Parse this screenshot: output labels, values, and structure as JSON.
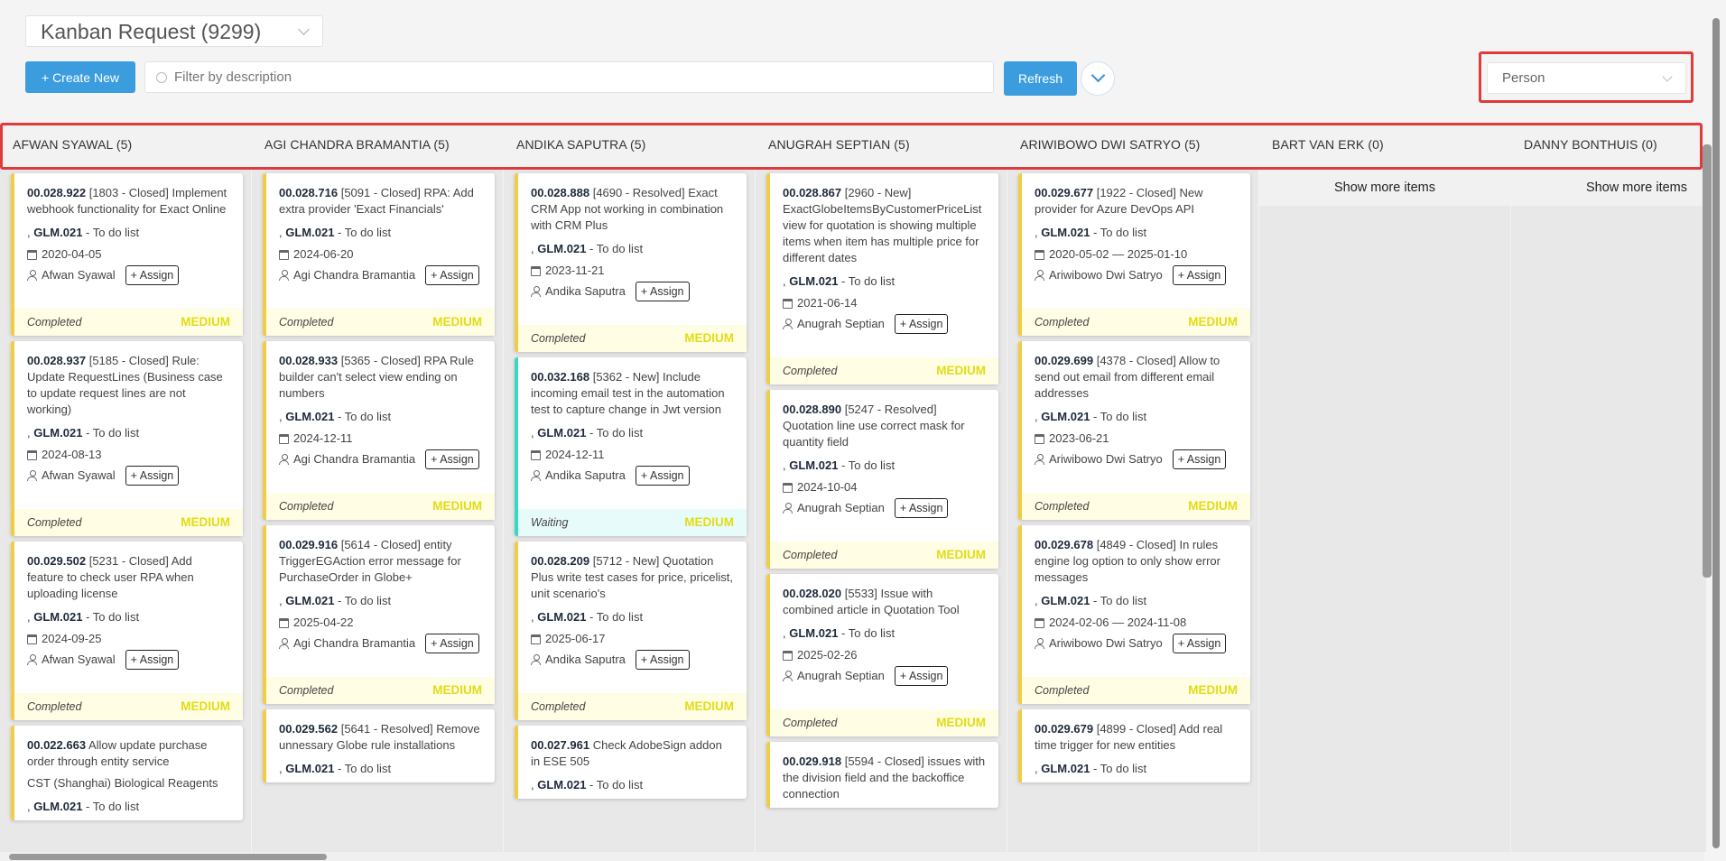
{
  "view_selector": {
    "value": "Kanban Request (9299)"
  },
  "toolbar": {
    "create_label": "+ Create New",
    "filter_placeholder": "Filter by description",
    "refresh_label": "Refresh",
    "group_by_value": "Person"
  },
  "colors": {
    "accent": "#3b9ddd",
    "highlight": "#e03a3a",
    "card_border": "#f0cd45",
    "waiting_border": "#38d9c0",
    "priority": "#e2dc16"
  },
  "show_more_label": "Show more items",
  "assign_label": "+ Assign",
  "columns": [
    {
      "header": "AFWAN SYAWAL (5)",
      "cards": [
        {
          "id": "00.028.922",
          "text": "[1803 - Closed] Implement webhook functionality for Exact Online",
          "project": "GLM.021",
          "list": "- To do list",
          "date": "2020-04-05",
          "person": "Afwan Syawal",
          "status": "Completed",
          "priority": "MEDIUM"
        },
        {
          "id": "00.028.937",
          "text": "[5185 - Closed] Rule: Update RequestLines (Business case to update request lines are not working)",
          "project": "GLM.021",
          "list": "- To do list",
          "date": "2024-08-13",
          "person": "Afwan Syawal",
          "status": "Completed",
          "priority": "MEDIUM"
        },
        {
          "id": "00.029.502",
          "text": "[5231 - Closed] Add feature to check user RPA when uploading license",
          "project": "GLM.021",
          "list": "- To do list",
          "date": "2024-09-25",
          "person": "Afwan Syawal",
          "status": "Completed",
          "priority": "MEDIUM"
        },
        {
          "id": "00.022.663",
          "text": "Allow update purchase order through entity service",
          "sub": "CST (Shanghai) Biological Reagents",
          "project": "GLM.021",
          "list": "- To do list"
        }
      ]
    },
    {
      "header": "AGI CHANDRA BRAMANTIA (5)",
      "cards": [
        {
          "id": "00.028.716",
          "text": "[5091 - Closed] RPA: Add extra provider 'Exact Financials'",
          "project": "GLM.021",
          "list": "- To do list",
          "date": "2024-06-20",
          "person": "Agi Chandra Bramantia",
          "status": "Completed",
          "priority": "MEDIUM"
        },
        {
          "id": "00.028.933",
          "text": "[5365 - Closed] RPA Rule builder can't select view ending on numbers",
          "project": "GLM.021",
          "list": "- To do list",
          "date": "2024-12-11",
          "person": "Agi Chandra Bramantia",
          "status": "Completed",
          "priority": "MEDIUM"
        },
        {
          "id": "00.029.916",
          "text": "[5614 - Closed] entity TriggerEGAction error message for PurchaseOrder in Globe+",
          "project": "GLM.021",
          "list": "- To do list",
          "date": "2025-04-22",
          "person": "Agi Chandra Bramantia",
          "status": "Completed",
          "priority": "MEDIUM"
        },
        {
          "id": "00.029.562",
          "text": "[5641 - Resolved] Remove unnessary Globe rule installations",
          "project": "GLM.021",
          "list": "- To do list"
        }
      ]
    },
    {
      "header": "ANDIKA SAPUTRA (5)",
      "cards": [
        {
          "id": "00.028.888",
          "text": "[4690 - Resolved] Exact CRM App not working in combination with CRM Plus",
          "project": "GLM.021",
          "list": "- To do list",
          "date": "2023-11-21",
          "person": "Andika Saputra",
          "status": "Completed",
          "priority": "MEDIUM"
        },
        {
          "id": "00.032.168",
          "text": "[5362 - New] Include incoming email test in the automation test to capture change in Jwt version",
          "project": "GLM.021",
          "list": "- To do list",
          "date": "2024-12-11",
          "person": "Andika Saputra",
          "status": "Waiting",
          "priority": "MEDIUM"
        },
        {
          "id": "00.028.209",
          "text": "[5712 - New] Quotation Plus write test cases for price, pricelist, unit scenario's",
          "project": "GLM.021",
          "list": "- To do list",
          "date": "2025-06-17",
          "person": "Andika Saputra",
          "status": "Completed",
          "priority": "MEDIUM"
        },
        {
          "id": "00.027.961",
          "text": "Check AdobeSign addon in ESE 505",
          "project": "GLM.021",
          "list": "- To do list"
        }
      ]
    },
    {
      "header": "ANUGRAH SEPTIAN (5)",
      "cards": [
        {
          "id": "00.028.867",
          "text": "[2960 - New] ExactGlobeItemsByCustomerPriceList view for quotation is showing multiple items when item has multiple price for different dates",
          "project": "GLM.021",
          "list": "- To do list",
          "date": "2021-06-14",
          "person": "Anugrah Septian",
          "status": "Completed",
          "priority": "MEDIUM"
        },
        {
          "id": "00.028.890",
          "text": "[5247 - Resolved] Quotation line use correct mask for quantity field",
          "project": "GLM.021",
          "list": "- To do list",
          "date": "2024-10-04",
          "person": "Anugrah Septian",
          "status": "Completed",
          "priority": "MEDIUM"
        },
        {
          "id": "00.028.020",
          "text": "[5533] Issue with combined article in Quotation Tool",
          "project": "GLM.021",
          "list": "- To do list",
          "date": "2025-02-26",
          "person": "Anugrah Septian",
          "status": "Completed",
          "priority": "MEDIUM"
        },
        {
          "id": "00.029.918",
          "text": "[5594 - Closed] issues with the division field and the backoffice connection"
        }
      ]
    },
    {
      "header": "ARIWIBOWO DWI SATRYO (5)",
      "cards": [
        {
          "id": "00.029.677",
          "text": "[1922 - Closed] New provider for Azure DevOps API",
          "project": "GLM.021",
          "list": "- To do list",
          "date": "2020-05-02 — 2025-01-10",
          "person": "Ariwibowo Dwi Satryo",
          "status": "Completed",
          "priority": "MEDIUM"
        },
        {
          "id": "00.029.699",
          "text": "[4378 - Closed] Allow to send out email from different email addresses",
          "project": "GLM.021",
          "list": "- To do list",
          "date": "2023-06-21",
          "person": "Ariwibowo Dwi Satryo",
          "status": "Completed",
          "priority": "MEDIUM"
        },
        {
          "id": "00.029.678",
          "text": "[4849 - Closed] In rules engine log option to only show error messages",
          "project": "GLM.021",
          "list": "- To do list",
          "date": "2024-02-06 — 2024-11-08",
          "person": "Ariwibowo Dwi Satryo",
          "status": "Completed",
          "priority": "MEDIUM"
        },
        {
          "id": "00.029.679",
          "text": "[4899 - Closed] Add real time trigger for new entities",
          "project": "GLM.021",
          "list": "- To do list"
        }
      ]
    },
    {
      "header": "BART VAN ERK (0)",
      "cards": []
    },
    {
      "header": "DANNY BONTHUIS (0)",
      "cards": []
    }
  ]
}
